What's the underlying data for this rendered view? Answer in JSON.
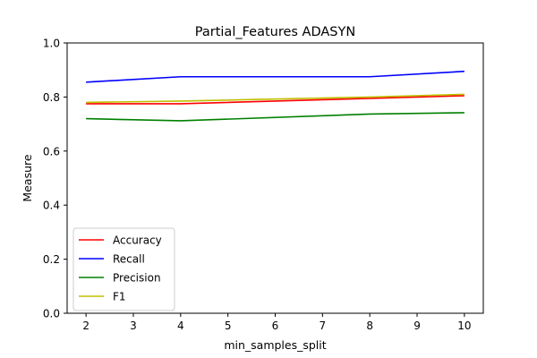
{
  "chart_data": {
    "type": "line",
    "title": "Partial_Features ADASYN",
    "xlabel": "min_samples_split",
    "ylabel": "Measure",
    "xlim": [
      1.6,
      10.4
    ],
    "ylim": [
      0.0,
      1.0
    ],
    "xticks": [
      2,
      3,
      4,
      5,
      6,
      7,
      8,
      9,
      10
    ],
    "xtick_labels": [
      "2",
      "3",
      "4",
      "5",
      "6",
      "7",
      "8",
      "9",
      "10"
    ],
    "yticks": [
      0.0,
      0.2,
      0.4,
      0.6,
      0.8,
      1.0
    ],
    "ytick_labels": [
      "0.0",
      "0.2",
      "0.4",
      "0.6",
      "0.8",
      "1.0"
    ],
    "grid": false,
    "legend_position": "lower-left",
    "x": [
      2,
      4,
      8,
      10
    ],
    "series": [
      {
        "name": "Accuracy",
        "color": "#ff0000",
        "values": [
          0.775,
          0.775,
          0.795,
          0.805
        ]
      },
      {
        "name": "Recall",
        "color": "#0000ff",
        "values": [
          0.855,
          0.875,
          0.875,
          0.895
        ]
      },
      {
        "name": "Precision",
        "color": "#008000",
        "values": [
          0.72,
          0.712,
          0.737,
          0.742
        ]
      },
      {
        "name": "F1",
        "color": "#bfbf00",
        "values": [
          0.78,
          0.785,
          0.8,
          0.81
        ]
      }
    ]
  }
}
